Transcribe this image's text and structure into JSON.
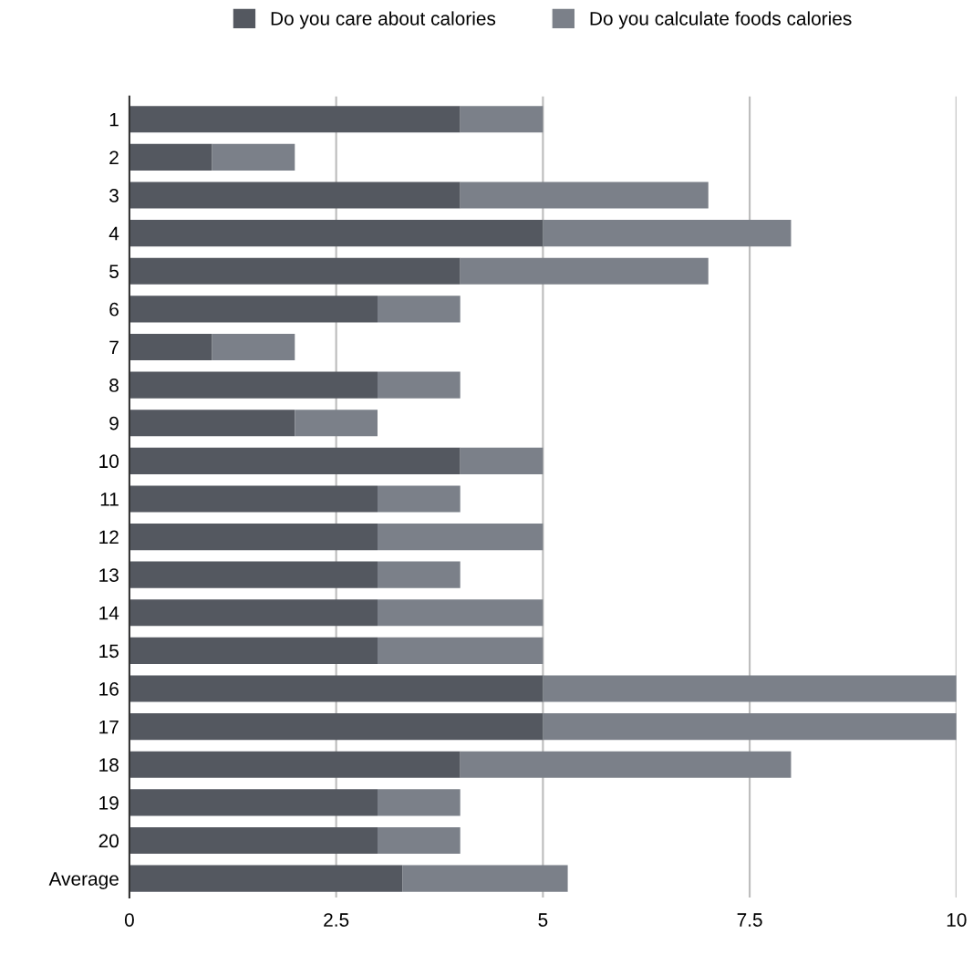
{
  "chart_data": {
    "type": "bar",
    "orientation": "horizontal",
    "stacked": true,
    "categories": [
      "1",
      "2",
      "3",
      "4",
      "5",
      "6",
      "7",
      "8",
      "9",
      "10",
      "11",
      "12",
      "13",
      "14",
      "15",
      "16",
      "17",
      "18",
      "19",
      "20",
      "Average"
    ],
    "series": [
      {
        "name": "Do you care about calories",
        "color": "#545860",
        "values": [
          4,
          1,
          4,
          5,
          4,
          3,
          1,
          3,
          2,
          4,
          3,
          3,
          3,
          3,
          3,
          5,
          5,
          4,
          3,
          3,
          3.3
        ]
      },
      {
        "name": "Do you calculate foods calories",
        "color": "#7b8089",
        "values": [
          1,
          1,
          3,
          3,
          3,
          1,
          1,
          1,
          1,
          1,
          1,
          2,
          1,
          2,
          2,
          5,
          5,
          4,
          1,
          1,
          2.0
        ]
      }
    ],
    "xlim": [
      0,
      10
    ],
    "xticks": [
      0,
      2.5,
      5,
      7.5,
      10
    ],
    "grid": "x",
    "legend": "top"
  }
}
